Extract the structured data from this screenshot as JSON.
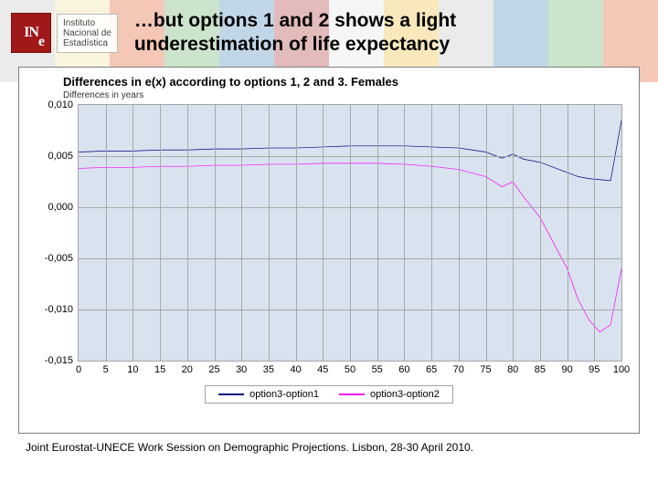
{
  "header": {
    "logo_text_line1": "Instituto",
    "logo_text_line2": "Nacional de",
    "logo_text_line3": "Estadística",
    "title": "…but options 1 and 2 shows a light underestimation of life expectancy"
  },
  "chart": {
    "type": "line",
    "title": "Differences in e(x) according to options 1, 2 and 3. Females",
    "subtitle": "Differences in years",
    "background_color": "#d9e3ef",
    "grid_color": "#a8a8a8",
    "border_color": "#a4a4a4",
    "xlim": [
      0,
      100
    ],
    "xtick_step": 5,
    "xticks": [
      0,
      5,
      10,
      15,
      20,
      25,
      30,
      35,
      40,
      45,
      50,
      55,
      60,
      65,
      70,
      75,
      80,
      85,
      90,
      95,
      100
    ],
    "ylim": [
      -0.015,
      0.01
    ],
    "ytick_step": 0.005,
    "yticks": [
      -0.015,
      -0.01,
      -0.005,
      0.0,
      0.005,
      0.01
    ],
    "ytick_labels": [
      "-0,015",
      "-0,010",
      "-0,005",
      "0,000",
      "0,005",
      "0,010"
    ],
    "label_fontsize": 11,
    "title_fontsize": 13,
    "series": [
      {
        "name": "option3-option1",
        "color": "#000080",
        "line_width": 2,
        "x": [
          0,
          5,
          10,
          15,
          20,
          25,
          30,
          35,
          40,
          45,
          50,
          55,
          60,
          65,
          70,
          75,
          78,
          80,
          82,
          85,
          88,
          90,
          92,
          94,
          96,
          98,
          100
        ],
        "y": [
          0.0054,
          0.0055,
          0.0055,
          0.0056,
          0.0056,
          0.0057,
          0.0057,
          0.0058,
          0.0058,
          0.0059,
          0.006,
          0.006,
          0.006,
          0.0059,
          0.0058,
          0.0054,
          0.0048,
          0.0052,
          0.0047,
          0.0044,
          0.0038,
          0.0034,
          0.003,
          0.0028,
          0.0027,
          0.0026,
          0.0085
        ]
      },
      {
        "name": "option3-option2",
        "color": "#ff00ff",
        "line_width": 2,
        "x": [
          0,
          5,
          10,
          15,
          20,
          25,
          30,
          35,
          40,
          45,
          50,
          55,
          60,
          65,
          70,
          75,
          78,
          80,
          82,
          85,
          88,
          90,
          92,
          94,
          96,
          98,
          100
        ],
        "y": [
          0.0038,
          0.0039,
          0.0039,
          0.004,
          0.004,
          0.0041,
          0.0041,
          0.0042,
          0.0042,
          0.0043,
          0.0043,
          0.0043,
          0.0042,
          0.004,
          0.0037,
          0.003,
          0.002,
          0.0025,
          0.001,
          -0.001,
          -0.004,
          -0.006,
          -0.009,
          -0.011,
          -0.0122,
          -0.0115,
          -0.006
        ]
      }
    ],
    "legend": {
      "items": [
        {
          "label": "option3-option1",
          "color": "#000080"
        },
        {
          "label": "option3-option2",
          "color": "#ff00ff"
        }
      ]
    }
  },
  "footer": {
    "text": "Joint Eurostat-UNECE Work Session on Demographic Projections. Lisbon, 28-30 April 2010."
  },
  "bg_colors": [
    "#c8c8c8",
    "#f0e0a0",
    "#e06030",
    "#70b070",
    "#5090c0",
    "#b04040",
    "#e8e8e8",
    "#f0c040",
    "#c8c8c8",
    "#5090c0",
    "#70b070",
    "#e06030"
  ]
}
